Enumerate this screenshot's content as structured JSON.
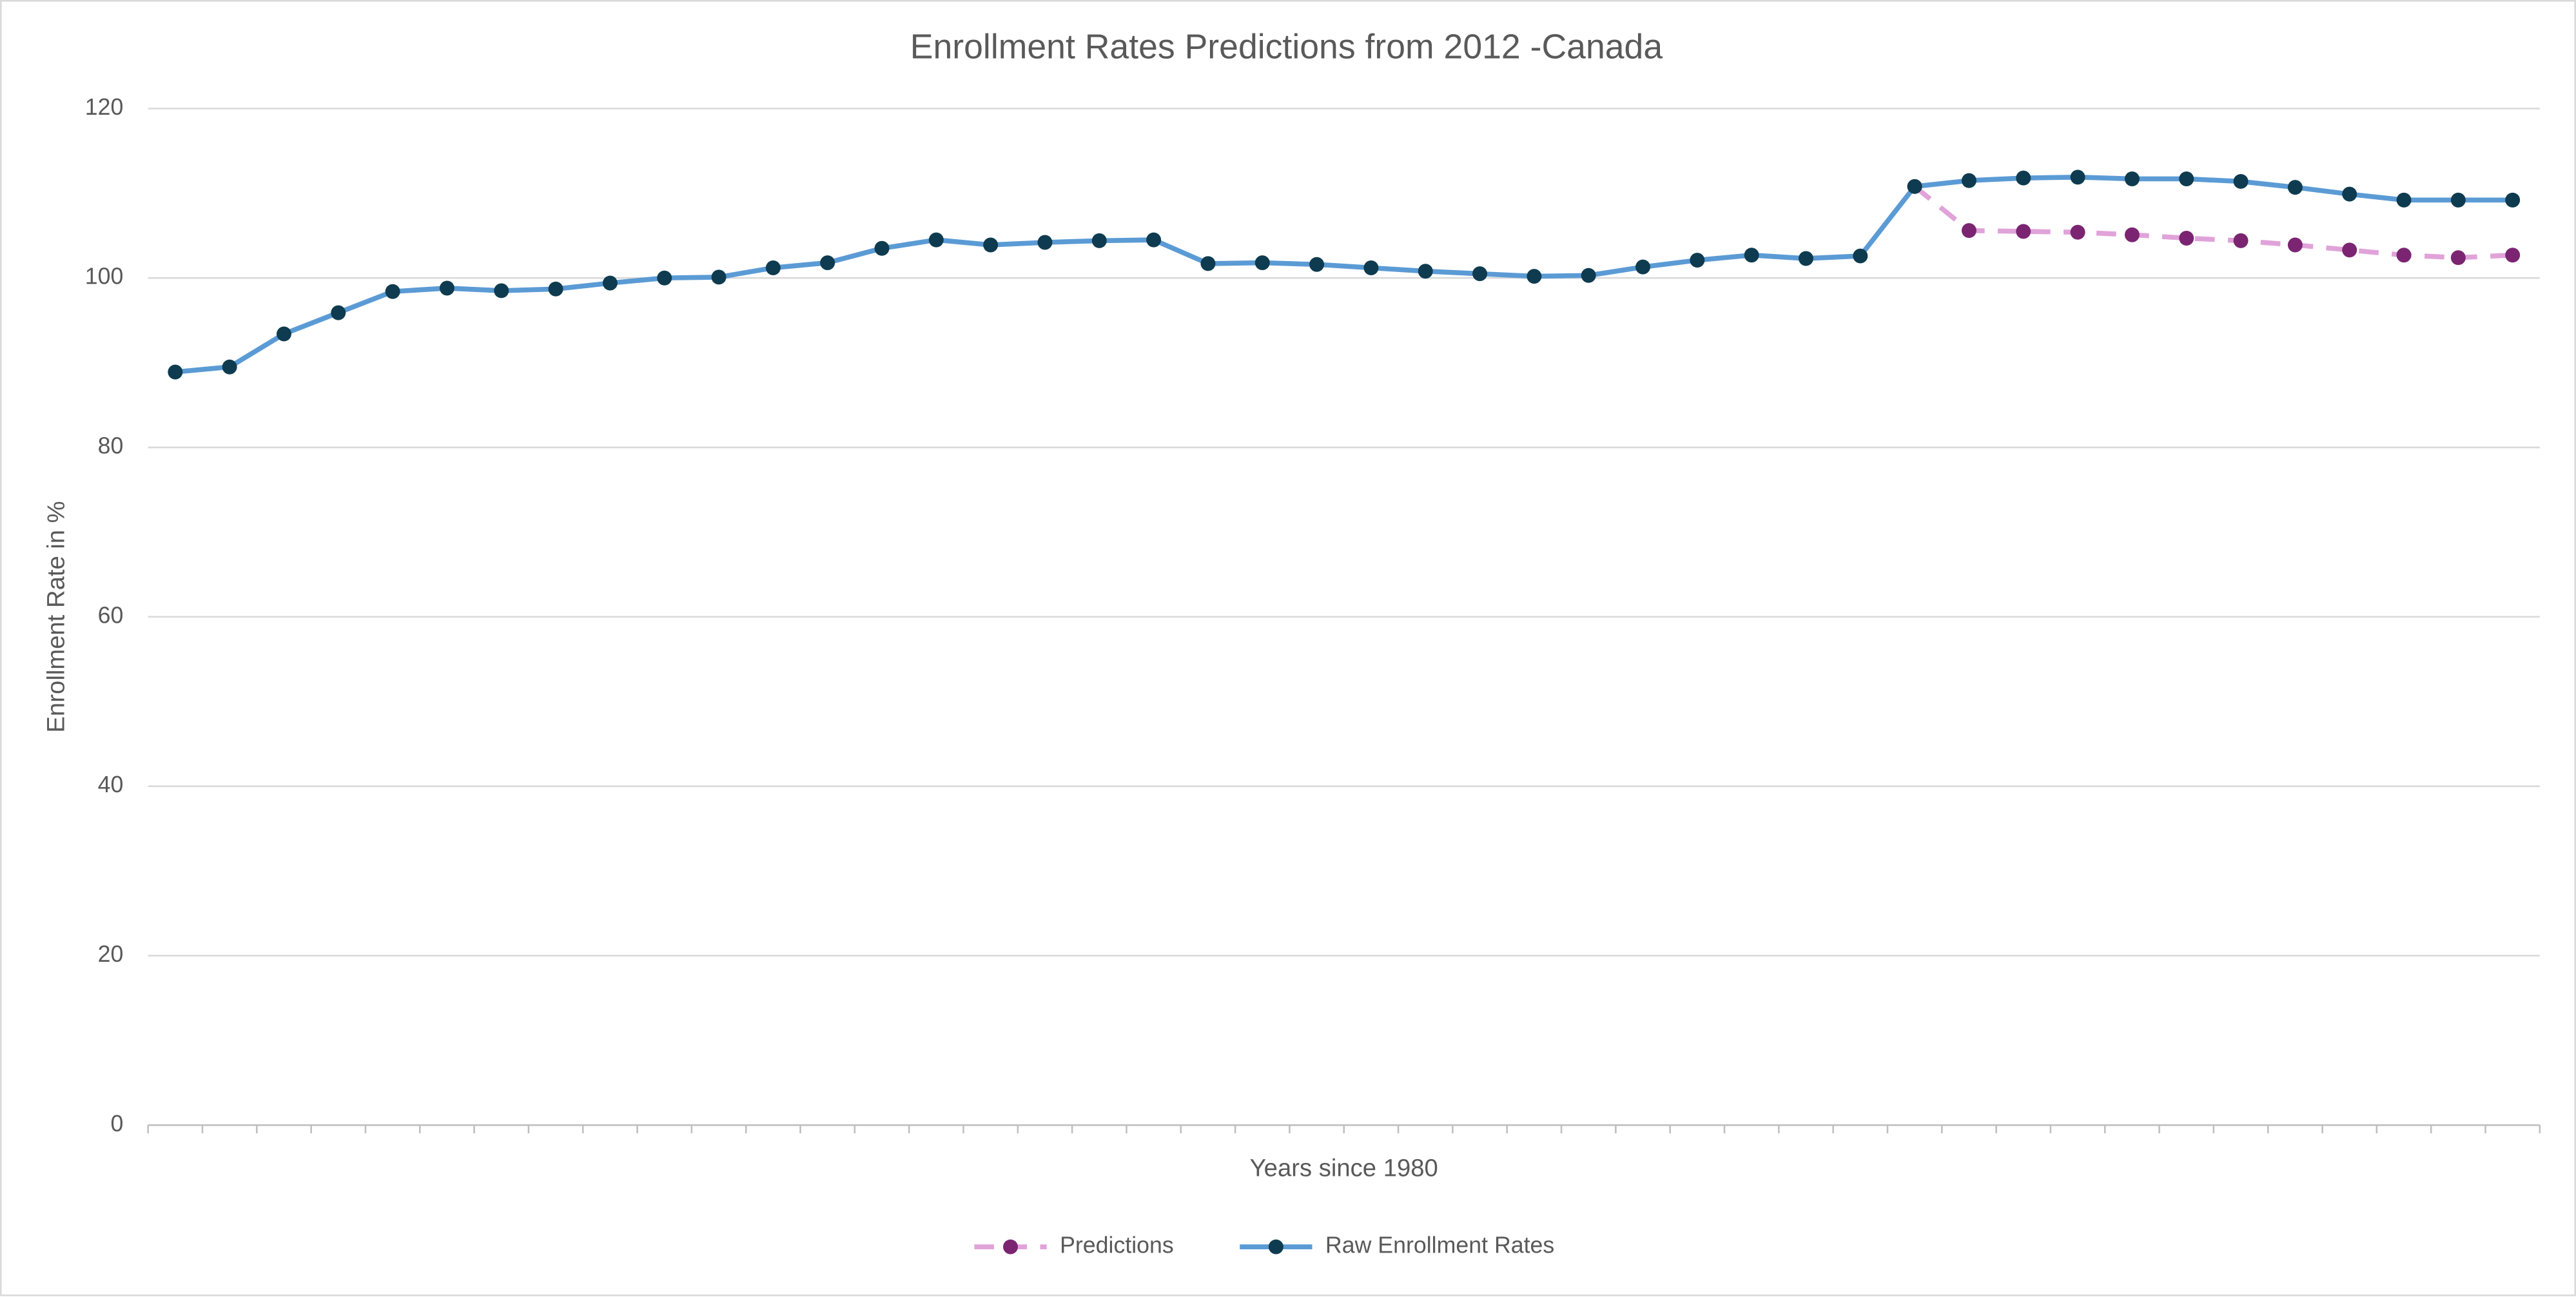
{
  "chart_data": {
    "type": "line",
    "title": "Enrollment Rates Predictions from 2012 -Canada",
    "x_label": "Years since 1980",
    "y_label": "Enrollment Rate in %",
    "categories": [
      null,
      null,
      null,
      null,
      null,
      null,
      null,
      null,
      null,
      null,
      null,
      null,
      null,
      null,
      null,
      null,
      null,
      null,
      null,
      null,
      null,
      null,
      null,
      null,
      null,
      null,
      null,
      null,
      null,
      null,
      null,
      null,
      null,
      null,
      null,
      null,
      null,
      null,
      null,
      null,
      null,
      null,
      null,
      null
    ],
    "series": [
      {
        "name": "Predictions",
        "color": "#e0a3d9",
        "marker_color": "#7b2572",
        "line_style": "dashed",
        "values": [
          null,
          null,
          null,
          null,
          null,
          null,
          null,
          null,
          null,
          null,
          null,
          null,
          null,
          null,
          null,
          null,
          null,
          null,
          null,
          null,
          null,
          null,
          null,
          null,
          null,
          null,
          null,
          null,
          null,
          null,
          null,
          null,
          110.8,
          105.6,
          105.5,
          105.4,
          105.1,
          104.7,
          104.4,
          103.9,
          103.3,
          102.7,
          102.4,
          102.7
        ]
      },
      {
        "name": "Raw Enrollment Rates",
        "color": "#5b9bd5",
        "marker_color": "#0e3b4f",
        "line_style": "solid",
        "values": [
          88.9,
          89.5,
          93.4,
          95.9,
          98.4,
          98.8,
          98.5,
          98.7,
          99.4,
          100.0,
          100.1,
          101.2,
          101.8,
          103.5,
          104.5,
          103.9,
          104.2,
          104.4,
          104.5,
          101.7,
          101.8,
          101.6,
          101.2,
          100.8,
          100.5,
          100.2,
          100.3,
          101.3,
          102.1,
          102.7,
          102.3,
          102.6,
          110.8,
          111.5,
          111.8,
          111.9,
          111.7,
          111.7,
          111.4,
          110.7,
          109.9,
          109.2,
          109.2,
          109.2
        ]
      }
    ],
    "ylim": [
      0,
      120
    ],
    "yticks": [
      0,
      20,
      40,
      60,
      80,
      100,
      120
    ],
    "grid": true,
    "legend": "bottom"
  }
}
